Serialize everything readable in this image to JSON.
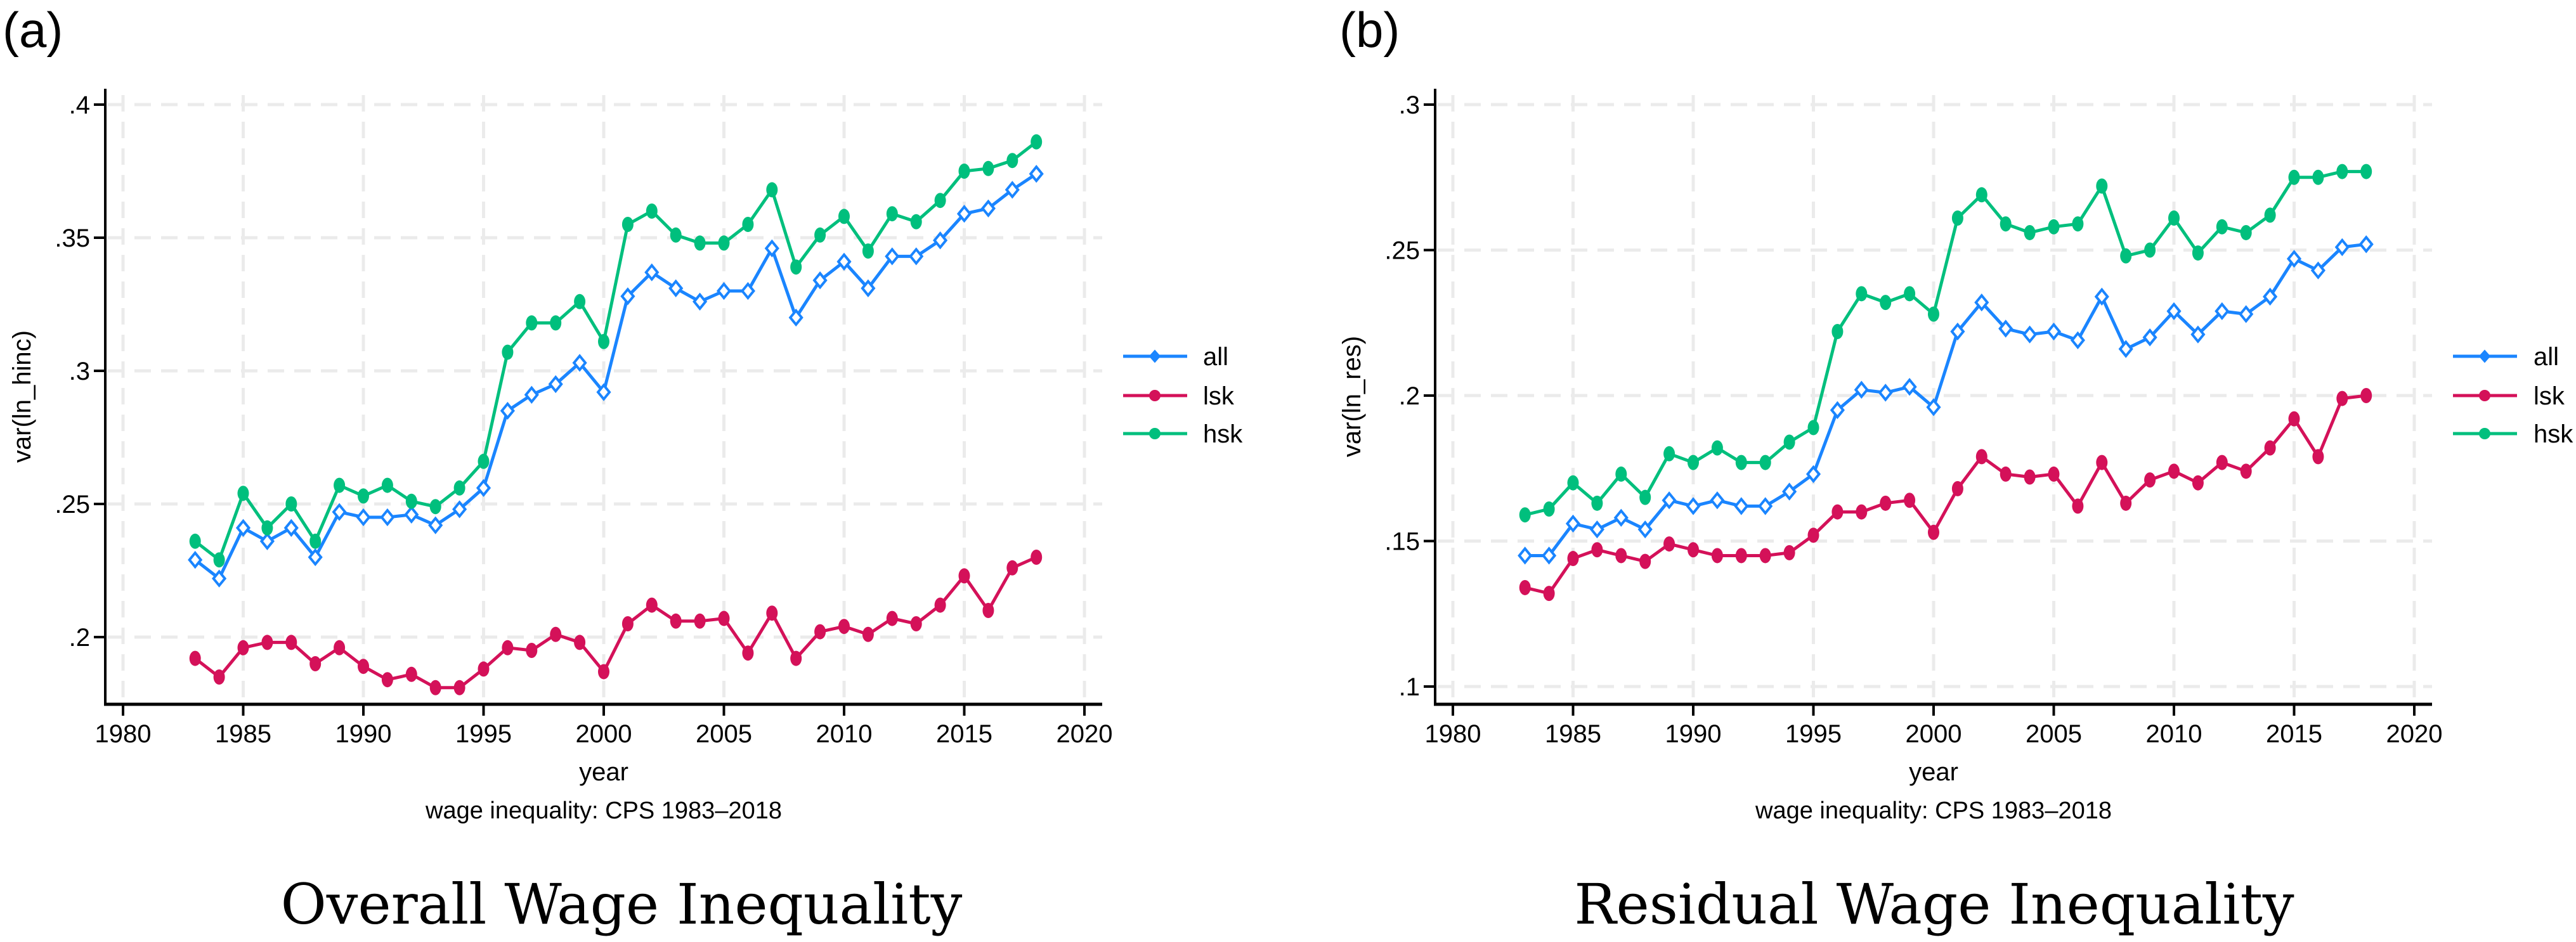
{
  "panels": [
    {
      "label": "(a)",
      "title": "Overall Wage Inequality"
    },
    {
      "label": "(b)",
      "title": "Residual Wage Inequality"
    }
  ],
  "colors": {
    "all": "#1a85ff",
    "lsk": "#d41159",
    "hsk": "#00bf7d",
    "grid": "#ebebeb",
    "axis": "#000000"
  },
  "chart_data": [
    {
      "type": "line",
      "panel": "(a)",
      "title": "Overall Wage Inequality",
      "subtitle": "wage inequality: CPS 1983–2018",
      "xlabel": "year",
      "ylabel": "var(ln_hinc)",
      "xlim": [
        1980,
        2020
      ],
      "ylim": [
        0.175,
        0.405
      ],
      "xticks": [
        1980,
        1985,
        1990,
        1995,
        2000,
        2005,
        2010,
        2015,
        2020
      ],
      "xtick_labels": [
        "1980",
        "1985",
        "1990",
        "1995",
        "2000",
        "2005",
        "2010",
        "2015",
        "2020"
      ],
      "yticks": [
        0.2,
        0.25,
        0.3,
        0.35,
        0.4
      ],
      "ytick_labels": [
        ".2",
        ".25",
        ".3",
        ".35",
        ".4"
      ],
      "grid": true,
      "legend_position": "right",
      "x": [
        1983,
        1984,
        1985,
        1986,
        1987,
        1988,
        1989,
        1990,
        1991,
        1992,
        1993,
        1994,
        1995,
        1996,
        1997,
        1998,
        1999,
        2000,
        2001,
        2002,
        2003,
        2004,
        2005,
        2006,
        2007,
        2008,
        2009,
        2010,
        2011,
        2012,
        2013,
        2014,
        2015,
        2016,
        2017,
        2018
      ],
      "series": [
        {
          "name": "all",
          "marker": "diamond-hollow",
          "values": [
            0.229,
            0.222,
            0.241,
            0.236,
            0.241,
            0.23,
            0.247,
            0.245,
            0.245,
            0.246,
            0.242,
            0.248,
            0.256,
            0.285,
            0.291,
            0.295,
            0.303,
            0.292,
            0.328,
            0.337,
            0.331,
            0.326,
            0.33,
            0.33,
            0.346,
            0.32,
            0.334,
            0.341,
            0.331,
            0.343,
            0.343,
            0.349,
            0.359,
            0.361,
            0.368,
            0.374
          ]
        },
        {
          "name": "lsk",
          "marker": "circle",
          "values": [
            0.192,
            0.185,
            0.196,
            0.198,
            0.198,
            0.19,
            0.196,
            0.189,
            0.184,
            0.186,
            0.181,
            0.181,
            0.188,
            0.196,
            0.195,
            0.201,
            0.198,
            0.187,
            0.205,
            0.212,
            0.206,
            0.206,
            0.207,
            0.194,
            0.209,
            0.192,
            0.202,
            0.204,
            0.201,
            0.207,
            0.205,
            0.212,
            0.223,
            0.21,
            0.226,
            0.23
          ]
        },
        {
          "name": "hsk",
          "marker": "circle",
          "values": [
            0.236,
            0.229,
            0.254,
            0.241,
            0.25,
            0.236,
            0.257,
            0.253,
            0.257,
            0.251,
            0.249,
            0.256,
            0.266,
            0.307,
            0.318,
            0.318,
            0.326,
            0.311,
            0.355,
            0.36,
            0.351,
            0.348,
            0.348,
            0.355,
            0.368,
            0.339,
            0.351,
            0.358,
            0.345,
            0.359,
            0.356,
            0.364,
            0.375,
            0.376,
            0.379,
            0.386
          ]
        }
      ]
    },
    {
      "type": "line",
      "panel": "(b)",
      "title": "Residual Wage Inequality",
      "subtitle": "wage inequality: CPS 1983–2018",
      "xlabel": "year",
      "ylabel": "var(ln_res)",
      "xlim": [
        1980,
        2020
      ],
      "ylim": [
        0.094,
        0.305
      ],
      "xticks": [
        1980,
        1985,
        1990,
        1995,
        2000,
        2005,
        2010,
        2015,
        2020
      ],
      "xtick_labels": [
        "1980",
        "1985",
        "1990",
        "1995",
        "2000",
        "2005",
        "2010",
        "2015",
        "2020"
      ],
      "yticks": [
        0.1,
        0.15,
        0.2,
        0.25,
        0.3
      ],
      "ytick_labels": [
        ".1",
        ".15",
        ".2",
        ".25",
        ".3"
      ],
      "grid": true,
      "legend_position": "right",
      "x": [
        1983,
        1984,
        1985,
        1986,
        1987,
        1988,
        1989,
        1990,
        1991,
        1992,
        1993,
        1994,
        1995,
        1996,
        1997,
        1998,
        1999,
        2000,
        2001,
        2002,
        2003,
        2004,
        2005,
        2006,
        2007,
        2008,
        2009,
        2010,
        2011,
        2012,
        2013,
        2014,
        2015,
        2016,
        2017,
        2018
      ],
      "series": [
        {
          "name": "all",
          "marker": "diamond-hollow",
          "values": [
            0.145,
            0.145,
            0.156,
            0.154,
            0.158,
            0.154,
            0.164,
            0.162,
            0.164,
            0.162,
            0.162,
            0.167,
            0.173,
            0.195,
            0.202,
            0.201,
            0.203,
            0.196,
            0.222,
            0.232,
            0.223,
            0.221,
            0.222,
            0.219,
            0.234,
            0.216,
            0.22,
            0.229,
            0.221,
            0.229,
            0.228,
            0.234,
            0.247,
            0.243,
            0.251,
            0.252
          ]
        },
        {
          "name": "lsk",
          "marker": "circle",
          "values": [
            0.134,
            0.132,
            0.144,
            0.147,
            0.145,
            0.143,
            0.149,
            0.147,
            0.145,
            0.145,
            0.145,
            0.146,
            0.152,
            0.16,
            0.16,
            0.163,
            0.164,
            0.153,
            0.168,
            0.179,
            0.173,
            0.172,
            0.173,
            0.162,
            0.177,
            0.163,
            0.171,
            0.174,
            0.17,
            0.177,
            0.174,
            0.182,
            0.192,
            0.179,
            0.199,
            0.2
          ]
        },
        {
          "name": "hsk",
          "marker": "circle",
          "values": [
            0.159,
            0.161,
            0.17,
            0.163,
            0.173,
            0.165,
            0.18,
            0.177,
            0.182,
            0.177,
            0.177,
            0.184,
            0.189,
            0.222,
            0.235,
            0.232,
            0.235,
            0.228,
            0.261,
            0.269,
            0.259,
            0.256,
            0.258,
            0.259,
            0.272,
            0.248,
            0.25,
            0.261,
            0.249,
            0.258,
            0.256,
            0.262,
            0.275,
            0.275,
            0.277,
            0.277
          ]
        }
      ]
    }
  ]
}
